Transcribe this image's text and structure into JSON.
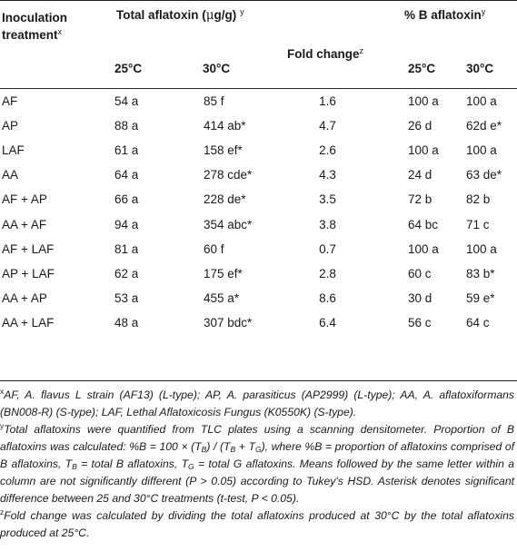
{
  "header": {
    "col1": "Inoculation",
    "col1_line2": "treatment",
    "col1_sup": "x",
    "total_title": "Total aflatoxin (",
    "total_mu": "μ",
    "total_unit": "g/g)",
    "total_sup": "y",
    "pctB_title": "% B aflatoxin",
    "pctB_sup": "y",
    "fold": "Fold change",
    "fold_sup": "z",
    "t25": "25°C",
    "t30": "30°C",
    "p25": "25°C",
    "p30": "30°C"
  },
  "rows": [
    {
      "treatment": "AF",
      "tot25": "54 a",
      "tot30": "85 f",
      "fold": "1.6",
      "b25": "100 a",
      "b30": "100 a"
    },
    {
      "treatment": "AP",
      "tot25": "88 a",
      "tot30": "414 ab*",
      "fold": "4.7",
      "b25": "26 d",
      "b30": "62d e*"
    },
    {
      "treatment": "LAF",
      "tot25": "61 a",
      "tot30": "158 ef*",
      "fold": "2.6",
      "b25": "100 a",
      "b30": "100 a"
    },
    {
      "treatment": "AA",
      "tot25": "64 a",
      "tot30": "278 cde*",
      "fold": "4.3",
      "b25": "24 d",
      "b30": "63 de*"
    },
    {
      "treatment": "AF + AP",
      "tot25": "66 a",
      "tot30": "228 de*",
      "fold": "3.5",
      "b25": "72 b",
      "b30": "82 b"
    },
    {
      "treatment": "AA + AF",
      "tot25": "94 a",
      "tot30": "354 abc*",
      "fold": "3.8",
      "b25": "64 bc",
      "b30": "71 c"
    },
    {
      "treatment": "AF + LAF",
      "tot25": "81 a",
      "tot30": "60 f",
      "fold": "0.7",
      "b25": "100 a",
      "b30": "100 a"
    },
    {
      "treatment": "AP + LAF",
      "tot25": "62 a",
      "tot30": "175 ef*",
      "fold": "2.8",
      "b25": "60 c",
      "b30": "83 b*"
    },
    {
      "treatment": "AA + AP",
      "tot25": "53 a",
      "tot30": "455 a*",
      "fold": "8.6",
      "b25": "30 d",
      "b30": "59 e*"
    },
    {
      "treatment": "AA + LAF",
      "tot25": "48 a",
      "tot30": "307 bdc*",
      "fold": "6.4",
      "b25": "56 c",
      "b30": "64 c"
    }
  ],
  "footnotes": {
    "x_mark": "x",
    "x_text": "AF, A. flavus L strain (AF13) (L-type); AP, A. parasiticus (AP2999) (L-type); AA, A. aflatoxiformans (BN008-R) (S-type); LAF, Lethal Aflatoxicosis Fungus (K0550K) (S-type).",
    "y_mark": "y",
    "y_text_1": "Total aflatoxins were quantified from TLC plates using a scanning densitometer. Proportion of B aflatoxins was calculated: %B = 100 × (T",
    "y_sub_B1": "B",
    "y_text_2": ") / (T",
    "y_sub_B2": "B",
    "y_text_3": " + T",
    "y_sub_G1": "G",
    "y_text_4": "), where %B = proportion of aflatoxins comprised of B aflatoxins, T",
    "y_sub_B3": "B",
    "y_text_5": " = total B aflatoxins, T",
    "y_sub_G2": "G",
    "y_text_6": " = total G aflatoxins. Means followed by the same letter within a column are not significantly different (P > 0.05) according to Tukey's HSD. Asterisk denotes significant difference between 25 and 30°C treatments (t-test, P < 0.05).",
    "z_mark": "z",
    "z_text": "Fold change was calculated by dividing the total aflatoxins produced at 30°C by the total aflatoxins produced at 25°C."
  }
}
